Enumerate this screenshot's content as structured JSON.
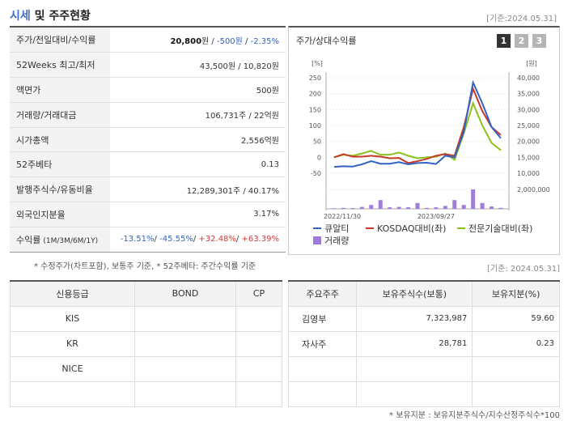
{
  "header": {
    "title_accent": "시세",
    "title_rest": " 및 주주현황",
    "date": "[기준:2024.05.31]"
  },
  "stock_rows": [
    {
      "key": "주가/전일대비/수익률",
      "parts": [
        {
          "t": "20,800",
          "c": "bold"
        },
        {
          "t": "원 / ",
          "c": ""
        },
        {
          "t": "-500원",
          "c": "neg"
        },
        {
          "t": " / ",
          "c": ""
        },
        {
          "t": "-2.35%",
          "c": "neg"
        }
      ]
    },
    {
      "key": "52Weeks 최고/최저",
      "parts": [
        {
          "t": "43,500원 / 10,820원",
          "c": ""
        }
      ]
    },
    {
      "key": "액면가",
      "parts": [
        {
          "t": "500원",
          "c": ""
        }
      ]
    },
    {
      "key": "거래량/거래대금",
      "parts": [
        {
          "t": "106,731주 / 22억원",
          "c": ""
        }
      ]
    },
    {
      "key": "시가총액",
      "parts": [
        {
          "t": "2,556억원",
          "c": ""
        }
      ]
    },
    {
      "key": "52주베타",
      "parts": [
        {
          "t": "0.13",
          "c": ""
        }
      ]
    },
    {
      "key": "발행주식수/유동비율",
      "parts": [
        {
          "t": "12,289,301주 / 40.17%",
          "c": ""
        }
      ]
    },
    {
      "key": "외국인지분율",
      "parts": [
        {
          "t": "3.17%",
          "c": ""
        }
      ]
    },
    {
      "key": "수익률",
      "key_small": "(1M/3M/6M/1Y)",
      "parts": [
        {
          "t": "-13.51%",
          "c": "neg"
        },
        {
          "t": "/ ",
          "c": ""
        },
        {
          "t": "-45.55%",
          "c": "neg"
        },
        {
          "t": "/ ",
          "c": ""
        },
        {
          "t": "+32.48%",
          "c": "pos"
        },
        {
          "t": "/ ",
          "c": ""
        },
        {
          "t": "+63.39%",
          "c": "pos"
        }
      ]
    }
  ],
  "note1": "* 수정주가(차트포함), 보통주 기준, * 52주베타: 주간수익률 기준",
  "chart_panel": {
    "title": "주가/상대수익률",
    "buttons": [
      "1",
      "2",
      "3"
    ],
    "colors": {
      "active": "#333333",
      "inactive": "#b5b5b5"
    }
  },
  "chart_data": {
    "type": "line",
    "left_unit": "[%]",
    "right_unit": "[원]",
    "left_ticks": [
      "250",
      "200",
      "150",
      "100",
      "50",
      "0",
      "-50"
    ],
    "right_ticks": [
      "40,000",
      "35,000",
      "30,000",
      "25,000",
      "20,000",
      "15,000",
      "10,000"
    ],
    "volume_tick": "2,000,000",
    "x_ticks": [
      "2022/11/30",
      "2023/09/27"
    ],
    "ylim_left": [
      -50,
      250
    ],
    "series": [
      {
        "name": "큐알티",
        "color": "#2f64c4",
        "values": [
          -30,
          -28,
          -29,
          -22,
          -12,
          -20,
          -20,
          -15,
          -22,
          -18,
          -17,
          -21,
          5,
          0,
          80,
          235,
          170,
          95,
          60
        ]
      },
      {
        "name": "KOSDAQ대비(좌)",
        "color": "#c63a2a",
        "values": [
          0,
          10,
          2,
          2,
          5,
          2,
          -3,
          -2,
          -18,
          -12,
          -5,
          5,
          10,
          5,
          95,
          215,
          145,
          95,
          70
        ]
      },
      {
        "name": "전문기술대비(좌)",
        "color": "#8bc21a",
        "values": [
          0,
          8,
          5,
          12,
          20,
          8,
          8,
          15,
          5,
          -3,
          0,
          2,
          12,
          -8,
          75,
          170,
          100,
          45,
          22
        ]
      }
    ],
    "volume": {
      "name": "거래량",
      "color": "#a07cdc",
      "values": [
        0.03,
        0.05,
        0.04,
        0.1,
        0.2,
        0.45,
        0.08,
        0.1,
        0.08,
        0.3,
        0.05,
        0.08,
        0.15,
        0.45,
        0.2,
        1.0,
        0.3,
        0.12,
        0.05
      ]
    }
  },
  "date2": "[기준: 2024.05.31]",
  "credit": {
    "headers": [
      "신용등급",
      "BOND",
      "CP"
    ],
    "rows": [
      [
        "KIS",
        "",
        ""
      ],
      [
        "KR",
        "",
        ""
      ],
      [
        "NICE",
        "",
        ""
      ],
      [
        "",
        "",
        ""
      ]
    ]
  },
  "holders": {
    "headers": [
      "주요주주",
      "보유주식수(보통)",
      "보유지분(%)"
    ],
    "rows": [
      [
        "김영부",
        "7,323,987",
        "59.60"
      ],
      [
        "자사주",
        "28,781",
        "0.23"
      ],
      [
        "",
        "",
        ""
      ],
      [
        "",
        "",
        ""
      ]
    ]
  },
  "note2": "* 보유지분 : 보유지분주식수/지수산정주식수*100"
}
